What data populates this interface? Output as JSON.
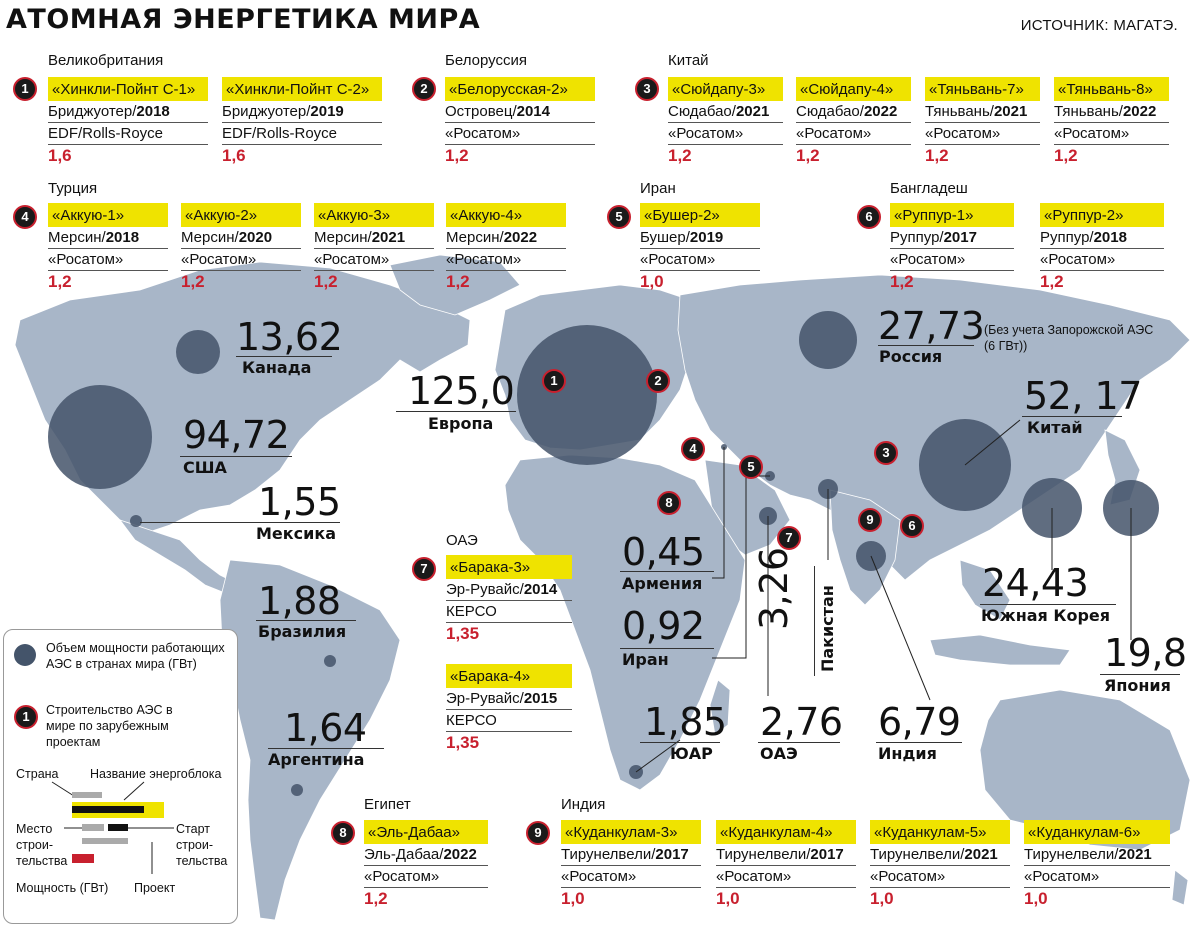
{
  "title": "АТОМНАЯ ЭНЕРГЕТИКА МИРА",
  "source": "ИСТОЧНИК: МАГАТЭ.",
  "colors": {
    "ocean": "#ffffff",
    "land": "#a8b6c8",
    "bubble": "#44546a",
    "yellow": "#efe300",
    "red": "#c8202e"
  },
  "projects": {
    "p1": {
      "num": "1",
      "country": "Великобритания",
      "units": [
        {
          "name": "«Хинкли-Пойнт С-1»",
          "place": "Бриджуотер/",
          "year": "2018",
          "vendor": "EDF/Rolls-Royce",
          "gw": "1,6"
        },
        {
          "name": "«Хинкли-Пойнт С-2»",
          "place": "Бриджуотер/",
          "year": "2019",
          "vendor": "EDF/Rolls-Royce",
          "gw": "1,6"
        }
      ]
    },
    "p2": {
      "num": "2",
      "country": "Белоруссия",
      "units": [
        {
          "name": "«Белорусская-2»",
          "place": "Островец/",
          "year": "2014",
          "vendor": "«Росатом»",
          "gw": "1,2"
        }
      ]
    },
    "p3": {
      "num": "3",
      "country": "Китай",
      "units": [
        {
          "name": "«Сюйдапу-3»",
          "place": "Сюдабао/",
          "year": "2021",
          "vendor": "«Росатом»",
          "gw": "1,2"
        },
        {
          "name": "«Сюйдапу-4»",
          "place": "Сюдабао/",
          "year": "2022",
          "vendor": "«Росатом»",
          "gw": "1,2"
        },
        {
          "name": "«Тяньвань-7»",
          "place": "Тяньвань/",
          "year": "2021",
          "vendor": "«Росатом»",
          "gw": "1,2"
        },
        {
          "name": "«Тяньвань-8»",
          "place": "Тяньвань/",
          "year": "2022",
          "vendor": "«Росатом»",
          "gw": "1,2"
        }
      ]
    },
    "p4": {
      "num": "4",
      "country": "Турция",
      "units": [
        {
          "name": "«Аккую-1»",
          "place": "Мерсин/",
          "year": "2018",
          "vendor": "«Росатом»",
          "gw": "1,2"
        },
        {
          "name": "«Аккую-2»",
          "place": "Мерсин/",
          "year": "2020",
          "vendor": "«Росатом»",
          "gw": "1,2"
        },
        {
          "name": "«Аккую-3»",
          "place": "Мерсин/",
          "year": "2021",
          "vendor": "«Росатом»",
          "gw": "1,2"
        },
        {
          "name": "«Аккую-4»",
          "place": "Мерсин/",
          "year": "2022",
          "vendor": "«Росатом»",
          "gw": "1,2"
        }
      ]
    },
    "p5": {
      "num": "5",
      "country": "Иран",
      "units": [
        {
          "name": "«Бушер-2»",
          "place": "Бушер/",
          "year": "2019",
          "vendor": "«Росатом»",
          "gw": "1,0"
        }
      ]
    },
    "p6": {
      "num": "6",
      "country": "Бангладеш",
      "units": [
        {
          "name": "«Руппур-1»",
          "place": "Руппур/",
          "year": "2017",
          "vendor": "«Росатом»",
          "gw": "1,2"
        },
        {
          "name": "«Руппур-2»",
          "place": "Руппур/",
          "year": "2018",
          "vendor": "«Росатом»",
          "gw": "1,2"
        }
      ]
    },
    "p7": {
      "num": "7",
      "country": "ОАЭ",
      "units": [
        {
          "name": "«Барака-3»",
          "place": "Эр-Рувайс/",
          "year": "2014",
          "vendor": "КЕРСО",
          "gw": "1,35"
        },
        {
          "name": "«Барака-4»",
          "place": "Эр-Рувайс/",
          "year": "2015",
          "vendor": "КЕРСО",
          "gw": "1,35"
        }
      ]
    },
    "p8": {
      "num": "8",
      "country": "Египет",
      "units": [
        {
          "name": "«Эль-Дабаа»",
          "place": "Эль-Дабаа/",
          "year": "2022",
          "vendor": "«Росатом»",
          "gw": "1,2"
        }
      ]
    },
    "p9": {
      "num": "9",
      "country": "Индия",
      "units": [
        {
          "name": "«Куданкулам-3»",
          "place": "Тирунелвели/",
          "year": "2017",
          "vendor": "«Росатом»",
          "gw": "1,0"
        },
        {
          "name": "«Куданкулам-4»",
          "place": "Тирунелвели/",
          "year": "2017",
          "vendor": "«Росатом»",
          "gw": "1,0"
        },
        {
          "name": "«Куданкулам-5»",
          "place": "Тирунелвели/",
          "year": "2021",
          "vendor": "«Росатом»",
          "gw": "1,0"
        },
        {
          "name": "«Куданкулам-6»",
          "place": "Тирунелвели/",
          "year": "2021",
          "vendor": "«Росатом»",
          "gw": "1,0"
        }
      ]
    }
  },
  "capacity": {
    "canada": {
      "value": "13,62",
      "name": "Канада"
    },
    "usa": {
      "value": "94,72",
      "name": "США"
    },
    "mexico": {
      "value": "1,55",
      "name": "Мексика"
    },
    "brazil": {
      "value": "1,88",
      "name": "Бразилия"
    },
    "argentina": {
      "value": "1,64",
      "name": "Аргентина"
    },
    "europe": {
      "value": "125,0",
      "name": "Европа"
    },
    "russia": {
      "value": "27,73",
      "name": "Россия",
      "note": "(Без учета Запорожской АЭС (6 ГВт))"
    },
    "china": {
      "value": "52, 17",
      "name": "Китай"
    },
    "korea": {
      "value": "24,43",
      "name": "Южная Корея"
    },
    "japan": {
      "value": "19,8",
      "name": "Япония"
    },
    "armenia": {
      "value": "0,45",
      "name": "Армения"
    },
    "iran": {
      "value": "0,92",
      "name": "Иран"
    },
    "pakistan": {
      "value": "3,26",
      "name": "Пакистан"
    },
    "sar": {
      "value": "1,85",
      "name": "ЮАР"
    },
    "uae": {
      "value": "2,76",
      "name": "ОАЭ"
    },
    "india": {
      "value": "6,79",
      "name": "Индия"
    }
  },
  "legend": {
    "bubble": "Объем мощности работающих АЭС в странах мира (ГВт)",
    "num_sample": "1",
    "num": "Строительство АЭС в мире по зарубежным проектам",
    "country": "Страна",
    "unit_name": "Название энергоблока",
    "place": "Место строи-тельства",
    "start": "Старт строи-тельства",
    "power": "Мощность (ГВт)",
    "project": "Проект"
  }
}
